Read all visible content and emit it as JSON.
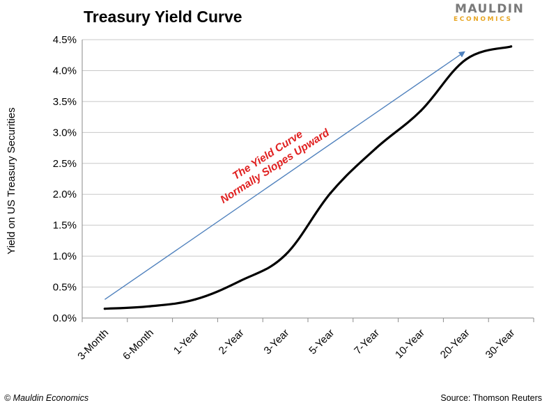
{
  "logo": {
    "name": "MAULDIN",
    "sub": "ECONOMICS"
  },
  "footer": {
    "left": "© Mauldin Economics",
    "right": "Source: Thomson Reuters"
  },
  "colors": {
    "line": "#000000",
    "arrow": "#4f81bd",
    "annotation": "#e02020",
    "logo_main": "#7a7a7a",
    "logo_sub": "#e8a623",
    "grid": "#c8c8c8"
  },
  "chart_data": {
    "type": "line",
    "title": "Treasury Yield Curve",
    "xlabel": "",
    "ylabel": "Yield on US Treasury Securities",
    "categories": [
      "3-Month",
      "6-Month",
      "1-Year",
      "2-Year",
      "3-Year",
      "5-Year",
      "7-Year",
      "10-Year",
      "20-Year",
      "30-Year"
    ],
    "series": [
      {
        "values": [
          0.15,
          0.19,
          0.3,
          0.6,
          1.02,
          2.02,
          2.74,
          3.35,
          4.18,
          4.39
        ]
      }
    ],
    "ylim": [
      0,
      4.5
    ],
    "yticks": [
      0,
      0.5,
      1.0,
      1.5,
      2.0,
      2.5,
      3.0,
      3.5,
      4.0,
      4.5
    ],
    "ytick_labels": [
      "0.0%",
      "0.5%",
      "1.0%",
      "1.5%",
      "2.0%",
      "2.5%",
      "3.0%",
      "3.5%",
      "4.0%",
      "4.5%"
    ],
    "grid": "horizontal",
    "legend": "none",
    "annotations": [
      {
        "text": [
          "The Yield Curve",
          "Normally Slopes Upward"
        ],
        "color": "#e02020"
      }
    ],
    "trend_arrow": {
      "from": [
        0,
        0.3
      ],
      "to": [
        7.96,
        4.3
      ],
      "color": "#4f81bd"
    }
  }
}
